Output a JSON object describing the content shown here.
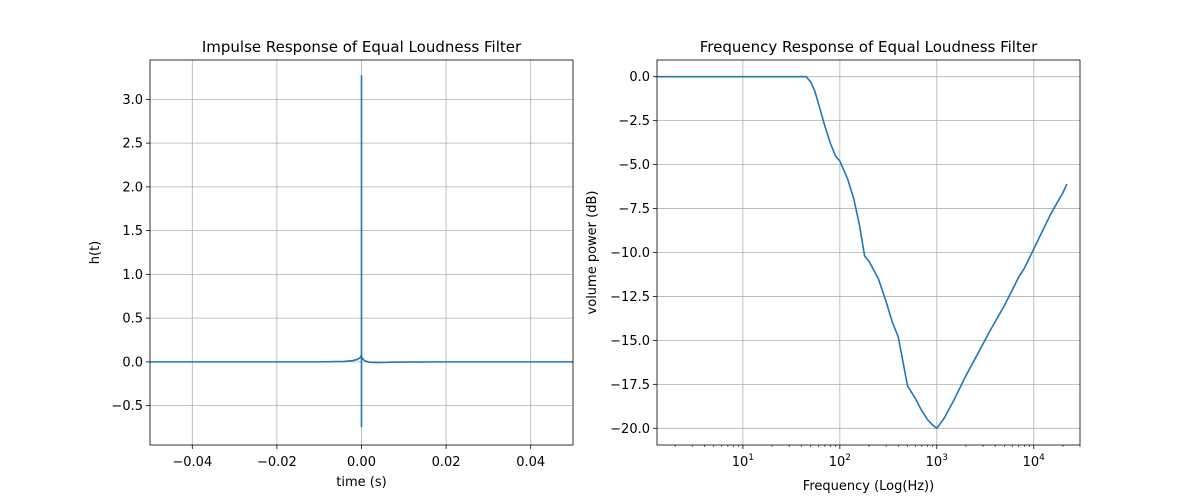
{
  "chart_data": [
    {
      "type": "line",
      "title": "Impulse Response of Equal Loudness Filter",
      "xlabel": "time (s)",
      "ylabel": "h(t)",
      "xlim": [
        -0.05,
        0.05
      ],
      "ylim": [
        -0.95,
        3.45
      ],
      "grid": true,
      "xticks": [
        -0.04,
        -0.02,
        0.0,
        0.02,
        0.04
      ],
      "xtick_labels": [
        "−0.04",
        "−0.02",
        "0.00",
        "0.02",
        "0.04"
      ],
      "yticks": [
        -0.5,
        0.0,
        0.5,
        1.0,
        1.5,
        2.0,
        2.5,
        3.0
      ],
      "ytick_labels": [
        "−0.5",
        "0.0",
        "0.5",
        "1.0",
        "1.5",
        "2.0",
        "2.5",
        "3.0"
      ],
      "series": [
        {
          "color": "#1f77b4",
          "x": [
            -0.05,
            -0.01,
            -0.004,
            -0.002,
            -0.001,
            -0.0004,
            -0.0002,
            -0.0001,
            0.0,
            0.0,
            0.0,
            0.0,
            0.0001,
            0.0003,
            0.0006,
            0.001,
            0.002,
            0.004,
            0.007,
            0.01,
            0.02,
            0.05
          ],
          "y": [
            0.0,
            0.0,
            0.005,
            0.015,
            0.028,
            0.045,
            0.06,
            0.07,
            0.08,
            3.27,
            -0.74,
            0.06,
            0.05,
            0.035,
            0.02,
            0.008,
            -0.005,
            -0.008,
            -0.004,
            -0.002,
            0.0,
            0.0
          ]
        }
      ]
    },
    {
      "type": "line",
      "title": "Frequency Response of Equal Loudness Filter",
      "xlabel": "Frequency (Log(Hz))",
      "ylabel": "volume power (dB)",
      "xscale": "log",
      "xlim": [
        1.3,
        30000
      ],
      "ylim": [
        -20.95,
        0.95
      ],
      "grid": true,
      "xticks": [
        10,
        100,
        1000,
        10000
      ],
      "xtick_labels": [
        {
          "base": "10",
          "exp": "1"
        },
        {
          "base": "10",
          "exp": "2"
        },
        {
          "base": "10",
          "exp": "3"
        },
        {
          "base": "10",
          "exp": "4"
        }
      ],
      "yticks": [
        0.0,
        -2.5,
        -5.0,
        -7.5,
        -10.0,
        -12.5,
        -15.0,
        -17.5,
        -20.0
      ],
      "ytick_labels": [
        "0.0",
        "−2.5",
        "−5.0",
        "−7.5",
        "−10.0",
        "−12.5",
        "−15.0",
        "−17.5",
        "−20.0"
      ],
      "series": [
        {
          "color": "#1f77b4",
          "x": [
            1.3,
            10,
            20,
            40,
            45,
            50,
            55,
            60,
            70,
            80,
            90,
            100,
            120,
            140,
            160,
            180,
            200,
            250,
            300,
            350,
            400,
            500,
            600,
            700,
            800,
            900,
            1000,
            1200,
            1500,
            2000,
            3000,
            3500,
            5000,
            7000,
            8000,
            10000,
            15000,
            20000,
            22000
          ],
          "y": [
            0.0,
            0.0,
            0.0,
            0.0,
            0.0,
            -0.3,
            -0.8,
            -1.5,
            -2.8,
            -3.8,
            -4.5,
            -4.8,
            -5.8,
            -7.0,
            -8.5,
            -10.2,
            -10.5,
            -11.5,
            -12.8,
            -14.0,
            -14.8,
            -17.6,
            -18.3,
            -19.0,
            -19.5,
            -19.8,
            -20.0,
            -19.4,
            -18.4,
            -17.0,
            -15.2,
            -14.5,
            -13.0,
            -11.4,
            -10.9,
            -9.8,
            -7.8,
            -6.6,
            -6.1
          ]
        }
      ]
    }
  ]
}
